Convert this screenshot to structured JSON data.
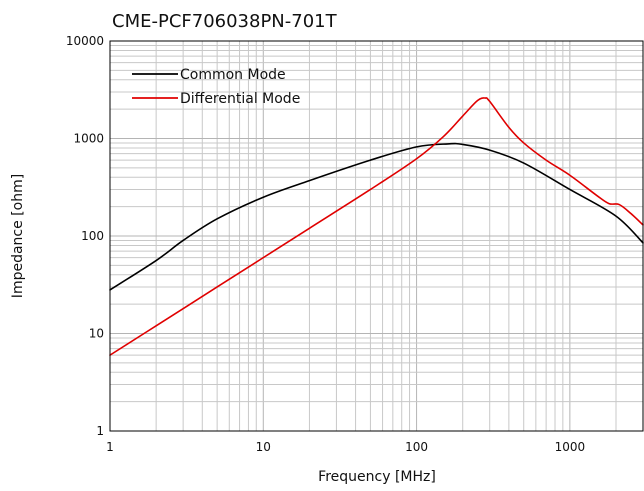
{
  "chart_data": {
    "type": "line",
    "title": "CME-PCF706038PN-701T",
    "xlabel": "Frequency [MHz]",
    "ylabel": "Impedance [ohm]",
    "xscale": "log",
    "yscale": "log",
    "xlim": [
      1,
      3000
    ],
    "ylim": [
      1,
      10000
    ],
    "xticks": [
      1,
      10,
      100,
      1000
    ],
    "xtick_labels": [
      "1",
      "10",
      "100",
      "1000"
    ],
    "yticks": [
      1,
      10,
      100,
      1000,
      10000
    ],
    "ytick_labels": [
      "1",
      "10",
      "100",
      "1000",
      "10000"
    ],
    "grid": true,
    "legend_position": "top-left",
    "series": [
      {
        "name": "Common Mode",
        "color": "#000000",
        "points": [
          [
            1,
            28
          ],
          [
            2,
            56
          ],
          [
            3,
            90
          ],
          [
            5,
            150
          ],
          [
            10,
            250
          ],
          [
            20,
            370
          ],
          [
            50,
            600
          ],
          [
            100,
            820
          ],
          [
            160,
            880
          ],
          [
            200,
            870
          ],
          [
            300,
            760
          ],
          [
            500,
            560
          ],
          [
            1000,
            300
          ],
          [
            2000,
            160
          ],
          [
            3000,
            85
          ]
        ]
      },
      {
        "name": "Differential Mode",
        "color": "#e00000",
        "points": [
          [
            1,
            6
          ],
          [
            2,
            12
          ],
          [
            5,
            30
          ],
          [
            10,
            60
          ],
          [
            20,
            120
          ],
          [
            50,
            300
          ],
          [
            100,
            620
          ],
          [
            150,
            1050
          ],
          [
            200,
            1700
          ],
          [
            250,
            2450
          ],
          [
            280,
            2600
          ],
          [
            300,
            2400
          ],
          [
            400,
            1300
          ],
          [
            500,
            900
          ],
          [
            700,
            600
          ],
          [
            1000,
            420
          ],
          [
            1500,
            260
          ],
          [
            1800,
            215
          ],
          [
            2100,
            210
          ],
          [
            2500,
            170
          ],
          [
            3000,
            130
          ]
        ]
      }
    ]
  }
}
